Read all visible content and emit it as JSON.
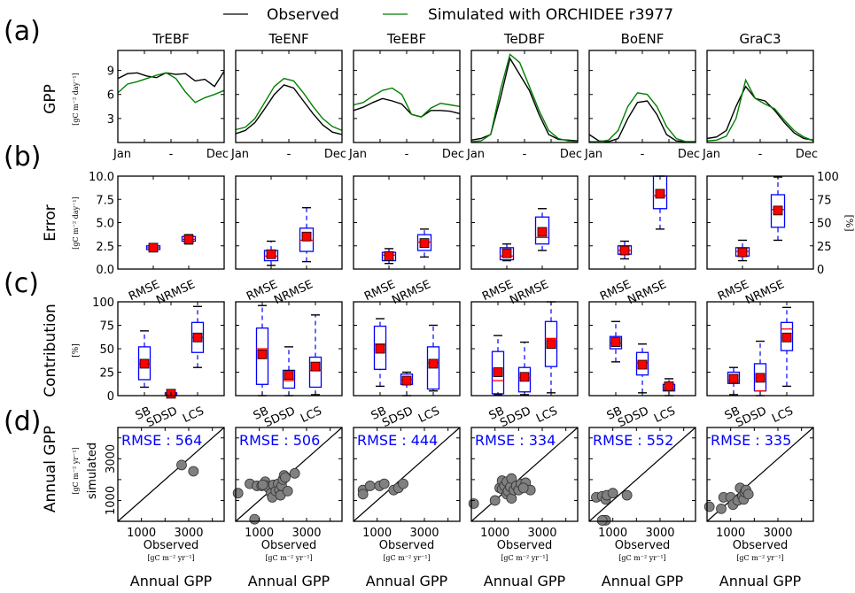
{
  "legend": {
    "position": "top-center",
    "items": [
      {
        "label": "Observed",
        "color": "#000000"
      },
      {
        "label": "Simulated with ORCHIDEE r3977",
        "color": "#008000"
      }
    ]
  },
  "panel_labels": [
    "(a)",
    "(b)",
    "(c)",
    "(d)"
  ],
  "columns": [
    "TrEBF",
    "TeENF",
    "TeEBF",
    "TeDBF",
    "BoENF",
    "GraC3"
  ],
  "row_labels": {
    "a": {
      "title": "GPP",
      "unit": "[gC m⁻² day⁻¹]"
    },
    "b": {
      "title": "Error",
      "unit": "[gC m⁻² day⁻¹]",
      "right_unit": "[%]"
    },
    "c": {
      "title": "Contribution",
      "unit": "[%]"
    },
    "d": {
      "title": "Annual GPP",
      "subtitle": "simulated",
      "unit": "[gC m⁻² yr⁻¹]"
    }
  },
  "x_labels_d": {
    "label": "Observed",
    "unit": "[gC m⁻² yr⁻¹]",
    "bottom": "Annual GPP"
  },
  "colors": {
    "observed": "#000000",
    "simulated": "#008000",
    "box": "#0000ff",
    "median": "#ff0000",
    "mean": "#ff0000",
    "scatter": "#808080",
    "rmse_text": "#0000ff"
  },
  "chart_data": [
    {
      "type": "line",
      "row": "a",
      "title": "Seasonal GPP",
      "ylabel": "GPP",
      "ylim": [
        0,
        11.5
      ],
      "yticks": [
        3,
        6,
        9
      ],
      "xticks": [
        "Jan",
        "-",
        "Dec"
      ],
      "x": [
        "Jan",
        "Feb",
        "Mar",
        "Apr",
        "May",
        "Jun",
        "Jul",
        "Aug",
        "Sep",
        "Oct",
        "Nov",
        "Dec"
      ],
      "panels": [
        {
          "name": "TrEBF",
          "observed": [
            8.0,
            8.6,
            8.7,
            8.3,
            8.1,
            8.7,
            8.5,
            8.6,
            7.7,
            7.9,
            7.0,
            8.9
          ],
          "simulated": [
            6.2,
            7.3,
            7.6,
            8.0,
            8.4,
            8.7,
            8.0,
            6.3,
            5.0,
            5.6,
            6.0,
            6.5
          ]
        },
        {
          "name": "TeENF",
          "observed": [
            1.1,
            1.5,
            2.5,
            4.2,
            6.0,
            7.2,
            6.8,
            5.2,
            3.6,
            2.2,
            1.3,
            1.0
          ],
          "simulated": [
            1.6,
            1.9,
            3.0,
            5.0,
            7.0,
            8.0,
            7.7,
            6.2,
            4.5,
            3.0,
            2.0,
            1.5
          ]
        },
        {
          "name": "TeEBF",
          "observed": [
            4.0,
            4.4,
            5.0,
            5.5,
            5.2,
            4.8,
            3.5,
            3.2,
            4.0,
            4.0,
            3.9,
            3.6
          ],
          "simulated": [
            4.7,
            5.0,
            5.8,
            6.5,
            6.8,
            6.0,
            3.5,
            3.2,
            4.3,
            4.9,
            4.7,
            4.5
          ]
        },
        {
          "name": "TeDBF",
          "observed": [
            0.3,
            0.5,
            1.0,
            5.5,
            10.5,
            8.5,
            6.5,
            3.5,
            1.0,
            0.4,
            0.3,
            0.2
          ],
          "simulated": [
            0.1,
            0.2,
            1.0,
            6.5,
            11.0,
            10.0,
            7.0,
            4.0,
            1.5,
            0.5,
            0.2,
            0.1
          ]
        },
        {
          "name": "BoENF",
          "observed": [
            1.0,
            0.2,
            0.1,
            0.5,
            3.0,
            5.0,
            5.2,
            3.5,
            1.0,
            0.2,
            0.1,
            0.1
          ],
          "simulated": [
            0.1,
            0.1,
            0.3,
            1.5,
            4.5,
            6.2,
            6.0,
            4.5,
            2.0,
            0.5,
            0.1,
            0.1
          ]
        },
        {
          "name": "GraC3",
          "observed": [
            0.5,
            0.7,
            1.5,
            4.5,
            7.0,
            5.5,
            5.2,
            4.0,
            2.5,
            1.2,
            0.5,
            0.3
          ],
          "simulated": [
            0.2,
            0.3,
            0.8,
            3.0,
            7.8,
            5.5,
            4.8,
            4.2,
            2.8,
            1.5,
            0.7,
            0.2
          ]
        }
      ]
    },
    {
      "type": "boxplot",
      "row": "b",
      "ylabel": "Error",
      "ylim": [
        0,
        10
      ],
      "yticks": [
        0.0,
        2.5,
        5.0,
        7.5,
        10.0
      ],
      "ytick_labels": [
        "0.0",
        "2.5",
        "5.0",
        "7.5",
        "10.0"
      ],
      "right_ylim": [
        0,
        100
      ],
      "right_yticks": [
        0,
        25,
        50,
        75,
        100
      ],
      "categories": [
        "RMSE",
        "NRMSE"
      ],
      "panels": [
        {
          "name": "TrEBF",
          "boxes": [
            {
              "whislo": 1.9,
              "q1": 2.1,
              "med": 2.3,
              "q3": 2.5,
              "whishi": 2.7,
              "mean": 2.3
            },
            {
              "whislo": 2.7,
              "q1": 3.0,
              "med": 3.2,
              "q3": 3.5,
              "whishi": 3.7,
              "mean": 3.2
            }
          ]
        },
        {
          "name": "TeENF",
          "boxes": [
            {
              "whislo": 0.4,
              "q1": 0.9,
              "med": 1.4,
              "q3": 2.0,
              "whishi": 3.0,
              "mean": 1.6
            },
            {
              "whislo": 0.8,
              "q1": 1.9,
              "med": 3.1,
              "q3": 4.4,
              "whishi": 6.6,
              "mean": 3.5
            }
          ]
        },
        {
          "name": "TeEBF",
          "boxes": [
            {
              "whislo": 0.6,
              "q1": 0.9,
              "med": 1.5,
              "q3": 1.8,
              "whishi": 2.2,
              "mean": 1.4
            },
            {
              "whislo": 1.3,
              "q1": 2.0,
              "med": 2.9,
              "q3": 3.7,
              "whishi": 4.3,
              "mean": 2.8
            }
          ]
        },
        {
          "name": "TeDBF",
          "boxes": [
            {
              "whislo": 0.9,
              "q1": 1.0,
              "med": 1.4,
              "q3": 2.3,
              "whishi": 2.7,
              "mean": 1.7
            },
            {
              "whislo": 2.0,
              "q1": 2.7,
              "med": 3.4,
              "q3": 5.6,
              "whishi": 6.5,
              "mean": 4.0
            }
          ]
        },
        {
          "name": "BoENF",
          "boxes": [
            {
              "whislo": 1.1,
              "q1": 1.6,
              "med": 2.0,
              "q3": 2.5,
              "whishi": 3.0,
              "mean": 2.0
            },
            {
              "whislo": 4.3,
              "q1": 6.5,
              "med": 7.9,
              "q3": 10.0,
              "whishi": 10.0,
              "mean": 8.1
            }
          ]
        },
        {
          "name": "GraC3",
          "boxes": [
            {
              "whislo": 0.9,
              "q1": 1.4,
              "med": 1.9,
              "q3": 2.3,
              "whishi": 3.1,
              "mean": 1.8
            },
            {
              "whislo": 3.1,
              "q1": 4.5,
              "med": 6.4,
              "q3": 8.0,
              "whishi": 9.9,
              "mean": 6.3
            }
          ]
        }
      ]
    },
    {
      "type": "boxplot",
      "row": "c",
      "ylabel": "Contribution",
      "ylim": [
        0,
        100
      ],
      "yticks": [
        0,
        25,
        50,
        75,
        100
      ],
      "categories": [
        "SB",
        "SDSD",
        "LCS"
      ],
      "panels": [
        {
          "name": "TrEBF",
          "boxes": [
            {
              "whislo": 9,
              "q1": 17,
              "med": 34,
              "q3": 52,
              "whishi": 69,
              "mean": 34
            },
            {
              "whislo": 0,
              "q1": 1,
              "med": 2,
              "q3": 3,
              "whishi": 4,
              "mean": 2
            },
            {
              "whislo": 30,
              "q1": 46,
              "med": 62,
              "q3": 78,
              "whishi": 95,
              "mean": 62
            }
          ]
        },
        {
          "name": "TeENF",
          "boxes": [
            {
              "whislo": 0,
              "q1": 12,
              "med": 50,
              "q3": 72,
              "whishi": 96,
              "mean": 44
            },
            {
              "whislo": 0,
              "q1": 8,
              "med": 16,
              "q3": 27,
              "whishi": 52,
              "mean": 22
            },
            {
              "whislo": 1,
              "q1": 9,
              "med": 27,
              "q3": 41,
              "whishi": 86,
              "mean": 31
            }
          ]
        },
        {
          "name": "TeEBF",
          "boxes": [
            {
              "whislo": 10,
              "q1": 28,
              "med": 55,
              "q3": 74,
              "whishi": 82,
              "mean": 50
            },
            {
              "whislo": 0,
              "q1": 12,
              "med": 17,
              "q3": 23,
              "whishi": 25,
              "mean": 16
            },
            {
              "whislo": 5,
              "q1": 7,
              "med": 35,
              "q3": 52,
              "whishi": 75,
              "mean": 34
            }
          ]
        },
        {
          "name": "TeDBF",
          "boxes": [
            {
              "whislo": 1,
              "q1": 2,
              "med": 16,
              "q3": 47,
              "whishi": 64,
              "mean": 25
            },
            {
              "whislo": 1,
              "q1": 4,
              "med": 19,
              "q3": 30,
              "whishi": 57,
              "mean": 20
            },
            {
              "whislo": 3,
              "q1": 31,
              "med": 61,
              "q3": 79,
              "whishi": 100,
              "mean": 55
            }
          ]
        },
        {
          "name": "BoENF",
          "boxes": [
            {
              "whislo": 36,
              "q1": 50,
              "med": 56,
              "q3": 63,
              "whishi": 79,
              "mean": 57
            },
            {
              "whislo": 3,
              "q1": 22,
              "med": 35,
              "q3": 46,
              "whishi": 55,
              "mean": 33
            },
            {
              "whislo": 0,
              "q1": 5,
              "med": 7,
              "q3": 12,
              "whishi": 18,
              "mean": 10
            }
          ]
        },
        {
          "name": "GraC3",
          "boxes": [
            {
              "whislo": 1,
              "q1": 13,
              "med": 16,
              "q3": 25,
              "whishi": 30,
              "mean": 18
            },
            {
              "whislo": 0,
              "q1": 5,
              "med": 5,
              "q3": 34,
              "whishi": 58,
              "mean": 19
            },
            {
              "whislo": 10,
              "q1": 48,
              "med": 71,
              "q3": 78,
              "whishi": 94,
              "mean": 62
            }
          ]
        }
      ]
    },
    {
      "type": "scatter",
      "row": "d",
      "xlabel": "Observed",
      "ylabel": "simulated",
      "xlim": [
        0,
        4500
      ],
      "ylim": [
        0,
        4500
      ],
      "xticks": [
        1000,
        3000
      ],
      "yticks": [
        1000,
        3000
      ],
      "one_to_one_line": true,
      "panels": [
        {
          "name": "TrEBF",
          "rmse_label": "RMSE : 564",
          "points": [
            [
              2700,
              2700
            ],
            [
              3200,
              2400
            ]
          ]
        },
        {
          "name": "TeENF",
          "rmse_label": "RMSE : 506",
          "points": [
            [
              100,
              1350
            ],
            [
              600,
              1800
            ],
            [
              900,
              1700
            ],
            [
              1100,
              1700
            ],
            [
              1250,
              1900
            ],
            [
              1300,
              1700
            ],
            [
              1400,
              1600
            ],
            [
              1500,
              1350
            ],
            [
              1550,
              1150
            ],
            [
              1600,
              1750
            ],
            [
              1700,
              1450
            ],
            [
              1800,
              1800
            ],
            [
              1850,
              1500
            ],
            [
              1900,
              1250
            ],
            [
              1950,
              1700
            ],
            [
              2000,
              2000
            ],
            [
              2050,
              2200
            ],
            [
              2100,
              2100
            ],
            [
              2200,
              1450
            ],
            [
              2500,
              2300
            ],
            [
              1150,
              1750
            ],
            [
              800,
              100
            ]
          ]
        },
        {
          "name": "TeEBF",
          "rmse_label": "RMSE : 444",
          "points": [
            [
              400,
              1500
            ],
            [
              400,
              1300
            ],
            [
              700,
              1700
            ],
            [
              1100,
              1700
            ],
            [
              1300,
              1800
            ],
            [
              1700,
              1500
            ],
            [
              1900,
              1600
            ],
            [
              2100,
              1800
            ]
          ]
        },
        {
          "name": "TeDBF",
          "rmse_label": "RMSE : 334",
          "points": [
            [
              100,
              850
            ],
            [
              1000,
              1000
            ],
            [
              1200,
              1600
            ],
            [
              1300,
              1550
            ],
            [
              1300,
              1950
            ],
            [
              1400,
              1700
            ],
            [
              1500,
              1900
            ],
            [
              1500,
              1300
            ],
            [
              1550,
              1450
            ],
            [
              1650,
              1650
            ],
            [
              1700,
              2050
            ],
            [
              1700,
              1100
            ],
            [
              1800,
              1500
            ],
            [
              1900,
              1700
            ],
            [
              2000,
              1500
            ],
            [
              2100,
              1800
            ],
            [
              2300,
              1850
            ],
            [
              2500,
              1500
            ],
            [
              2200,
              1600
            ]
          ]
        },
        {
          "name": "BoENF",
          "rmse_label": "RMSE : 552",
          "points": [
            [
              300,
              1150
            ],
            [
              550,
              1200
            ],
            [
              700,
              1050
            ],
            [
              750,
              1250
            ],
            [
              1000,
              1350
            ],
            [
              1600,
              1250
            ],
            [
              600,
              50
            ],
            [
              700,
              50
            ],
            [
              550,
              0
            ]
          ]
        },
        {
          "name": "GraC3",
          "rmse_label": "RMSE : 335",
          "points": [
            [
              100,
              700
            ],
            [
              600,
              600
            ],
            [
              700,
              1150
            ],
            [
              1000,
              1150
            ],
            [
              1100,
              800
            ],
            [
              1300,
              1000
            ],
            [
              1400,
              1600
            ],
            [
              1500,
              1200
            ],
            [
              1550,
              1050
            ],
            [
              1600,
              1400
            ],
            [
              1650,
              1500
            ],
            [
              1750,
              1300
            ]
          ]
        }
      ]
    }
  ]
}
